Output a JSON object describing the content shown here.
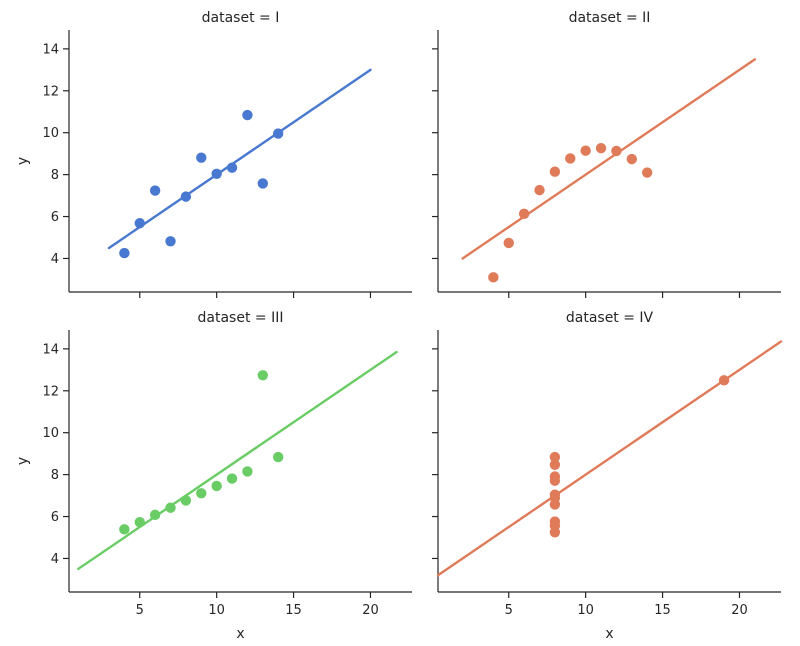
{
  "chart_data": [
    {
      "type": "scatter",
      "title": "dataset = I",
      "xlabel": "",
      "ylabel": "y",
      "xlim": [
        0.4,
        22.7
      ],
      "ylim": [
        2.4,
        14.9
      ],
      "xticks": [
        5,
        10,
        15,
        20
      ],
      "yticks": [
        4,
        6,
        8,
        10,
        12,
        14
      ],
      "color": "#4878cf",
      "points": [
        [
          10,
          8.04
        ],
        [
          8,
          6.95
        ],
        [
          13,
          7.58
        ],
        [
          9,
          8.81
        ],
        [
          11,
          8.33
        ],
        [
          14,
          9.96
        ],
        [
          6,
          7.24
        ],
        [
          4,
          4.26
        ],
        [
          12,
          10.84
        ],
        [
          7,
          4.82
        ],
        [
          5,
          5.68
        ]
      ],
      "fit_line": {
        "x": [
          3.0,
          20.0
        ],
        "y": [
          4.5,
          13.0
        ]
      }
    },
    {
      "type": "scatter",
      "title": "dataset = II",
      "xlabel": "",
      "ylabel": "",
      "xlim": [
        0.4,
        22.7
      ],
      "ylim": [
        2.4,
        14.9
      ],
      "xticks": [
        5,
        10,
        15,
        20
      ],
      "yticks": [
        4,
        6,
        8,
        10,
        12,
        14
      ],
      "color": "#e07b5a",
      "points": [
        [
          10,
          9.14
        ],
        [
          8,
          8.14
        ],
        [
          13,
          8.74
        ],
        [
          9,
          8.77
        ],
        [
          11,
          9.26
        ],
        [
          14,
          8.1
        ],
        [
          6,
          6.13
        ],
        [
          4,
          3.1
        ],
        [
          12,
          9.13
        ],
        [
          7,
          7.26
        ],
        [
          5,
          4.74
        ]
      ],
      "fit_line": {
        "x": [
          2.0,
          21.0
        ],
        "y": [
          4.0,
          13.5
        ]
      }
    },
    {
      "type": "scatter",
      "title": "dataset = III",
      "xlabel": "x",
      "ylabel": "y",
      "xlim": [
        0.4,
        22.7
      ],
      "ylim": [
        2.4,
        14.9
      ],
      "xticks": [
        5,
        10,
        15,
        20
      ],
      "yticks": [
        4,
        6,
        8,
        10,
        12,
        14
      ],
      "color": "#6acc65",
      "points": [
        [
          10,
          7.46
        ],
        [
          8,
          6.77
        ],
        [
          13,
          12.74
        ],
        [
          9,
          7.11
        ],
        [
          11,
          7.81
        ],
        [
          14,
          8.84
        ],
        [
          6,
          6.08
        ],
        [
          4,
          5.39
        ],
        [
          12,
          8.15
        ],
        [
          7,
          6.42
        ],
        [
          5,
          5.73
        ]
      ],
      "fit_line": {
        "x": [
          1.0,
          21.7
        ],
        "y": [
          3.5,
          13.85
        ]
      }
    },
    {
      "type": "scatter",
      "title": "dataset = IV",
      "xlabel": "x",
      "ylabel": "",
      "xlim": [
        0.4,
        22.7
      ],
      "ylim": [
        2.4,
        14.9
      ],
      "xticks": [
        5,
        10,
        15,
        20
      ],
      "yticks": [
        4,
        6,
        8,
        10,
        12,
        14
      ],
      "color": "#e07b5a",
      "points": [
        [
          8,
          6.58
        ],
        [
          8,
          5.76
        ],
        [
          8,
          7.71
        ],
        [
          8,
          8.84
        ],
        [
          8,
          8.47
        ],
        [
          8,
          7.04
        ],
        [
          8,
          5.25
        ],
        [
          19,
          12.5
        ],
        [
          8,
          5.56
        ],
        [
          8,
          7.91
        ],
        [
          8,
          6.89
        ]
      ],
      "fit_line": {
        "x": [
          0.4,
          22.7
        ],
        "y": [
          3.2,
          14.35
        ]
      }
    }
  ]
}
